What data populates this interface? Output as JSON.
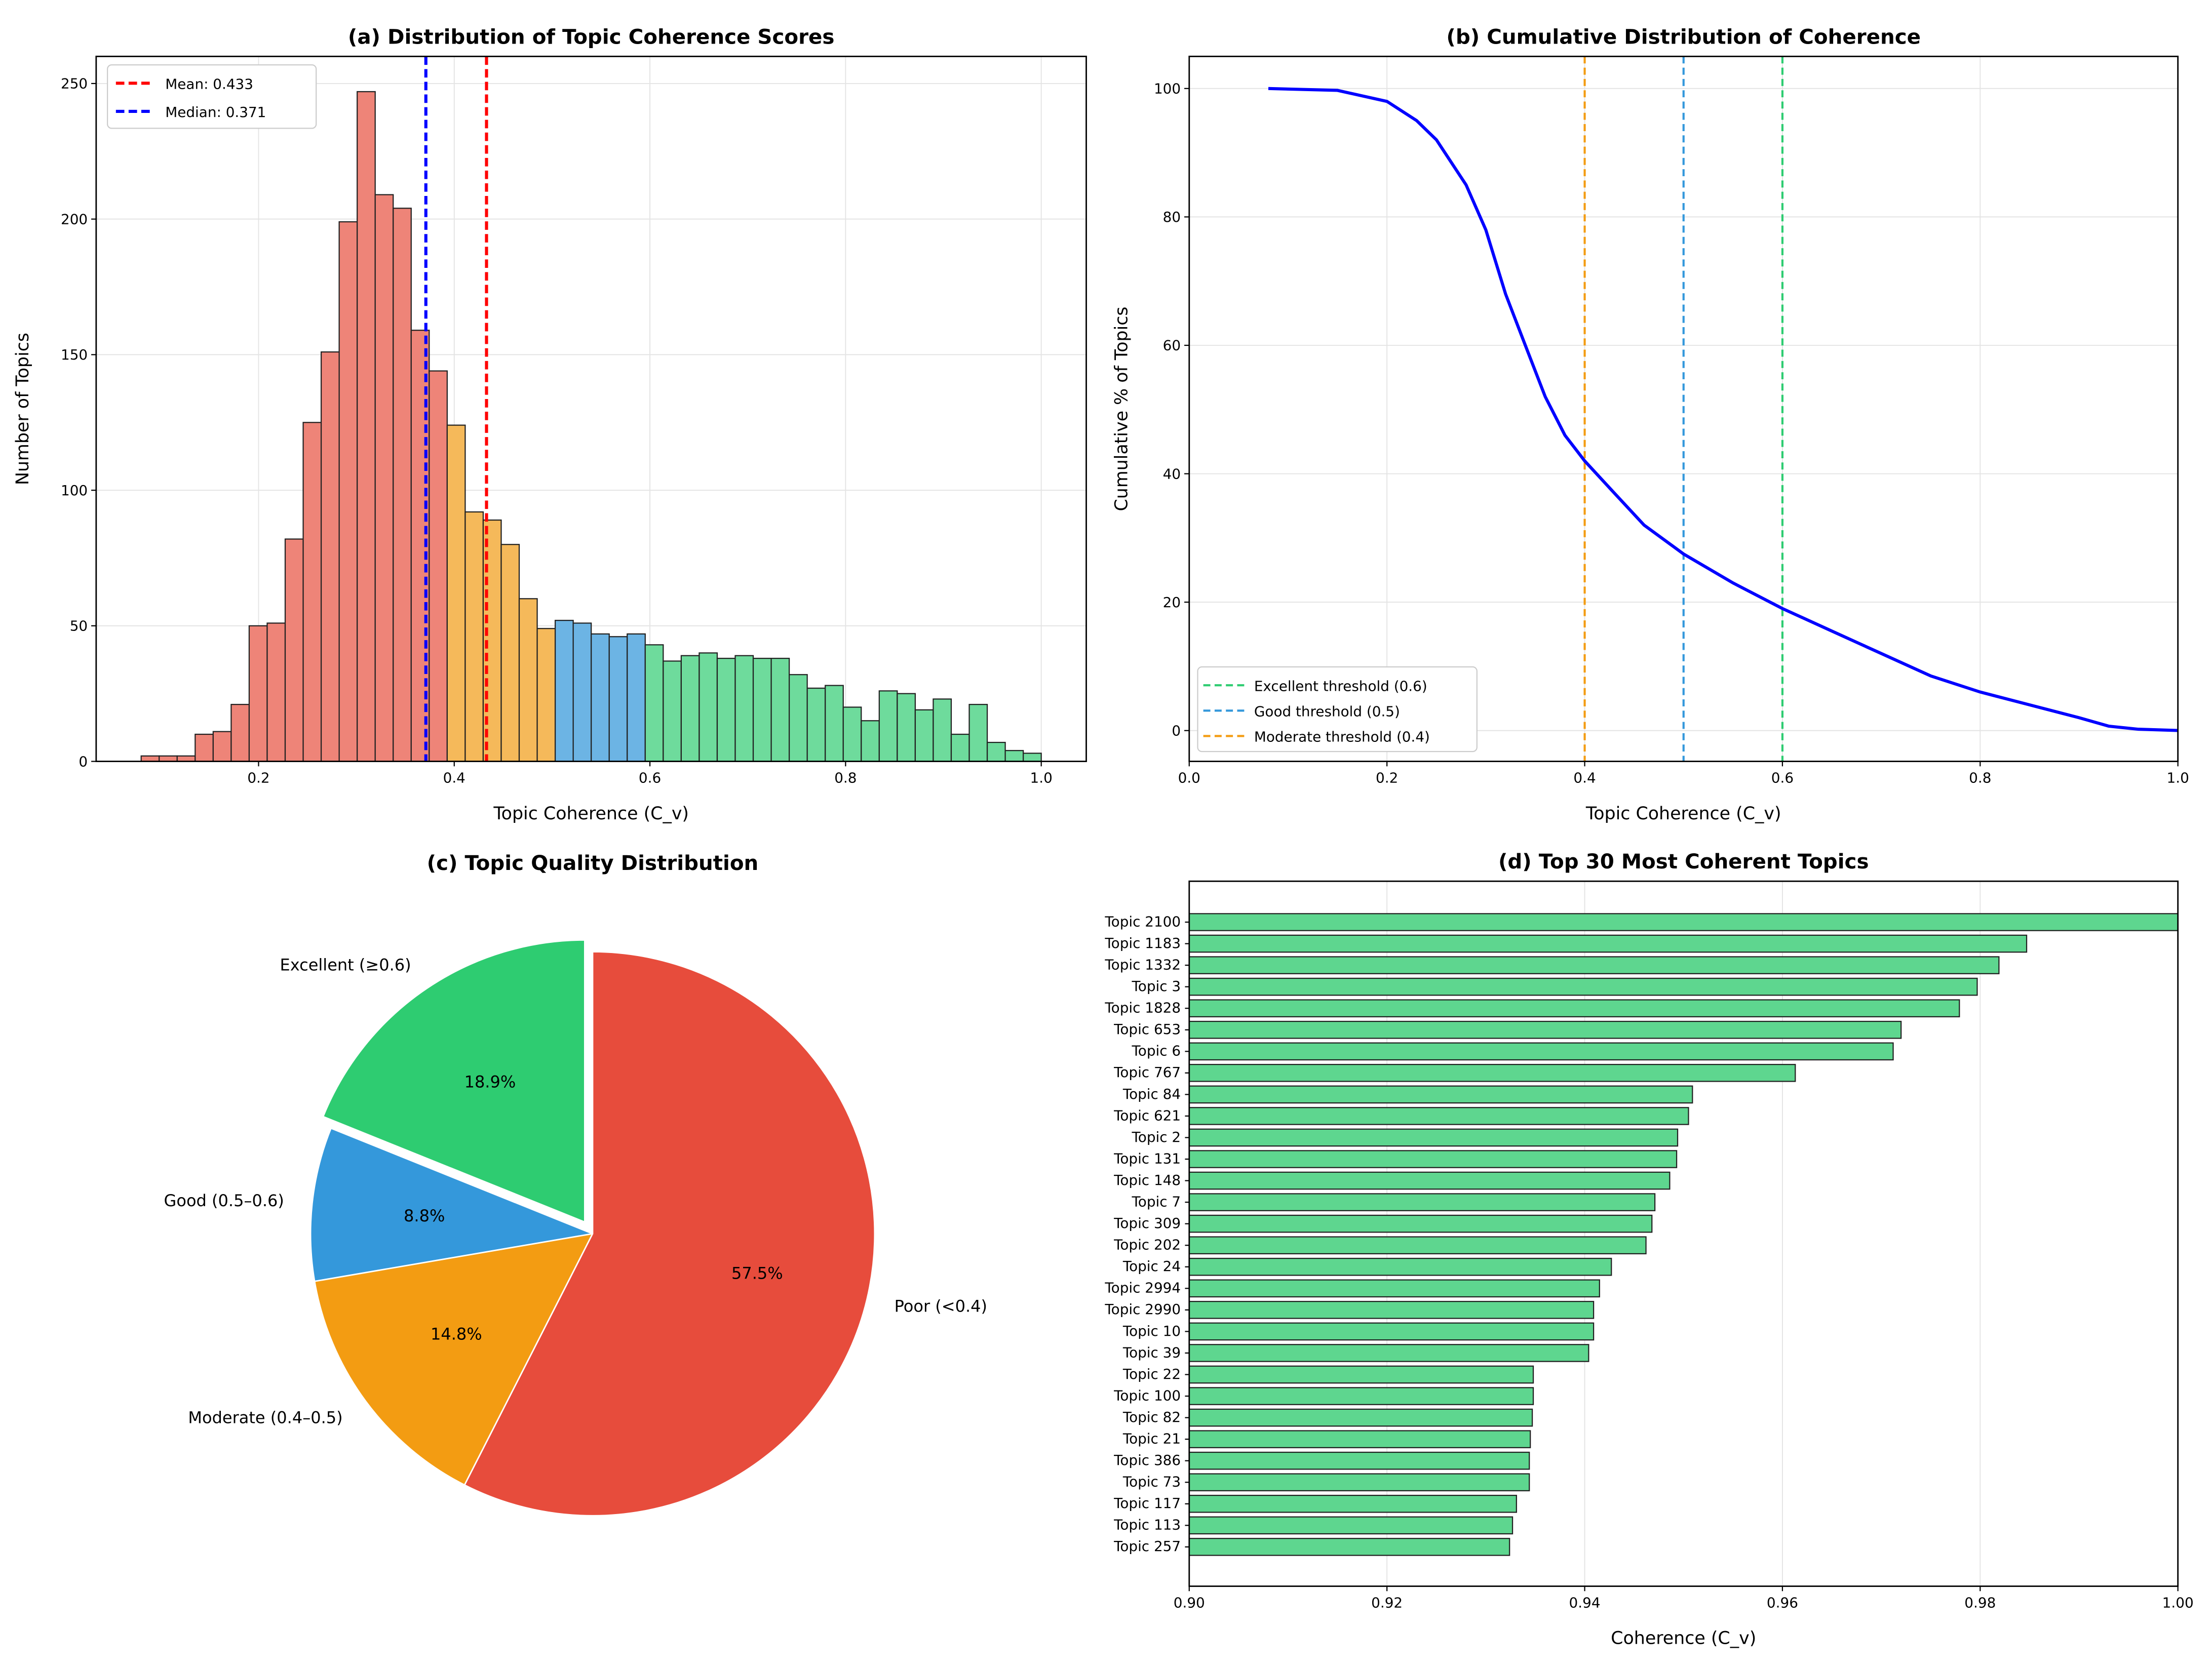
{
  "chart_data": [
    {
      "type": "bar",
      "subtype": "histogram",
      "title": "(a) Distribution of Topic Coherence Scores",
      "xlabel": "Topic Coherence (C_v)",
      "ylabel": "Number of Topics",
      "xlim": [
        0.034,
        1.046
      ],
      "ylim": [
        0,
        260
      ],
      "xticks": [
        "0.2",
        "0.4",
        "0.6",
        "0.8",
        "1.0"
      ],
      "yticks": [
        "0",
        "50",
        "100",
        "150",
        "200",
        "250"
      ],
      "bin_start": 0.08,
      "bin_width": 0.0184,
      "values": [
        2,
        2,
        2,
        10,
        11,
        21,
        50,
        51,
        82,
        125,
        151,
        199,
        247,
        209,
        204,
        159,
        144,
        124,
        92,
        89,
        80,
        60,
        49,
        52,
        51,
        47,
        46,
        47,
        43,
        37,
        39,
        40,
        38,
        39,
        38,
        38,
        32,
        27,
        28,
        20,
        15,
        26,
        25,
        19,
        23,
        10,
        21,
        7,
        4,
        3
      ],
      "color_bands": [
        {
          "name": "Poor",
          "max": 0.4,
          "color": "#ee8478"
        },
        {
          "name": "Moderate",
          "max": 0.5,
          "color": "#f5b95a"
        },
        {
          "name": "Good",
          "max": 0.6,
          "color": "#6cb4e4"
        },
        {
          "name": "Excellent",
          "max": 1.1,
          "color": "#6edb9c"
        }
      ],
      "reference_lines": [
        {
          "label": "Mean: 0.433",
          "x": 0.433,
          "color": "#ff0000"
        },
        {
          "label": "Median: 0.371",
          "x": 0.371,
          "color": "#0000ff"
        }
      ],
      "legend": "top-left",
      "grid": true
    },
    {
      "type": "line",
      "title": "(b) Cumulative Distribution of Coherence",
      "xlabel": "Topic Coherence (C_v)",
      "ylabel": "Cumulative % of Topics",
      "xlim": [
        0,
        1
      ],
      "ylim": [
        -4.8,
        105
      ],
      "xticks": [
        "0.0",
        "0.2",
        "0.4",
        "0.6",
        "0.8",
        "1.0"
      ],
      "yticks": [
        "0",
        "20",
        "40",
        "60",
        "80",
        "100"
      ],
      "x": [
        0.08,
        0.15,
        0.2,
        0.23,
        0.25,
        0.28,
        0.3,
        0.32,
        0.34,
        0.36,
        0.38,
        0.4,
        0.43,
        0.46,
        0.5,
        0.55,
        0.6,
        0.65,
        0.7,
        0.75,
        0.8,
        0.85,
        0.9,
        0.93,
        0.96,
        1.0
      ],
      "y": [
        100,
        99.7,
        98,
        95,
        92,
        85,
        78,
        68,
        60,
        52,
        46,
        42,
        37,
        32,
        27.5,
        23,
        19,
        15.5,
        12,
        8.5,
        6,
        4,
        2,
        0.7,
        0.2,
        0
      ],
      "color": "#0000ff",
      "reference_lines": [
        {
          "label": "Excellent threshold (0.6)",
          "x": 0.6,
          "color": "#2ecc71"
        },
        {
          "label": "Good threshold (0.5)",
          "x": 0.5,
          "color": "#3498db"
        },
        {
          "label": "Moderate threshold (0.4)",
          "x": 0.4,
          "color": "#f39c12"
        }
      ],
      "legend": "bottom-left",
      "grid": true
    },
    {
      "type": "pie",
      "title": "(c) Topic Quality Distribution",
      "start_angle": 90,
      "slices": [
        {
          "label": "Excellent (≥0.6)",
          "value": 18.9,
          "pct": "18.9%",
          "color": "#2ecc71",
          "explode": true
        },
        {
          "label": "Good (0.5–0.6)",
          "value": 8.8,
          "pct": "8.8%",
          "color": "#3498db",
          "explode": false
        },
        {
          "label": "Moderate (0.4–0.5)",
          "value": 14.8,
          "pct": "14.8%",
          "color": "#f39c12",
          "explode": false
        },
        {
          "label": "Poor (<0.4)",
          "value": 57.5,
          "pct": "57.5%",
          "color": "#e74c3c",
          "explode": false
        }
      ]
    },
    {
      "type": "bar",
      "orientation": "horizontal",
      "title": "(d) Top 30 Most Coherent Topics",
      "xlabel": "Coherence (C_v)",
      "xlim": [
        0.9,
        1.0
      ],
      "xticks": [
        "0.90",
        "0.92",
        "0.94",
        "0.96",
        "0.98",
        "1.00"
      ],
      "color": "#5ed68f",
      "categories": [
        "Topic 2100",
        "Topic 1183",
        "Topic 1332",
        "Topic 3",
        "Topic 1828",
        "Topic 653",
        "Topic 6",
        "Topic 767",
        "Topic 84",
        "Topic 621",
        "Topic 2",
        "Topic 131",
        "Topic 148",
        "Topic 7",
        "Topic 309",
        "Topic 202",
        "Topic 24",
        "Topic 2994",
        "Topic 2990",
        "Topic 10",
        "Topic 39",
        "Topic 22",
        "Topic 100",
        "Topic 82",
        "Topic 21",
        "Topic 386",
        "Topic 73",
        "Topic 117",
        "Topic 113",
        "Topic 257"
      ],
      "values": [
        1.0,
        0.9847,
        0.9819,
        0.9797,
        0.9779,
        0.972,
        0.9712,
        0.9613,
        0.9509,
        0.9505,
        0.9494,
        0.9493,
        0.9486,
        0.9471,
        0.9468,
        0.9462,
        0.9427,
        0.9415,
        0.9409,
        0.9409,
        0.9404,
        0.9348,
        0.9348,
        0.9347,
        0.9345,
        0.9344,
        0.9344,
        0.9331,
        0.9327,
        0.9324
      ],
      "grid": true
    }
  ]
}
